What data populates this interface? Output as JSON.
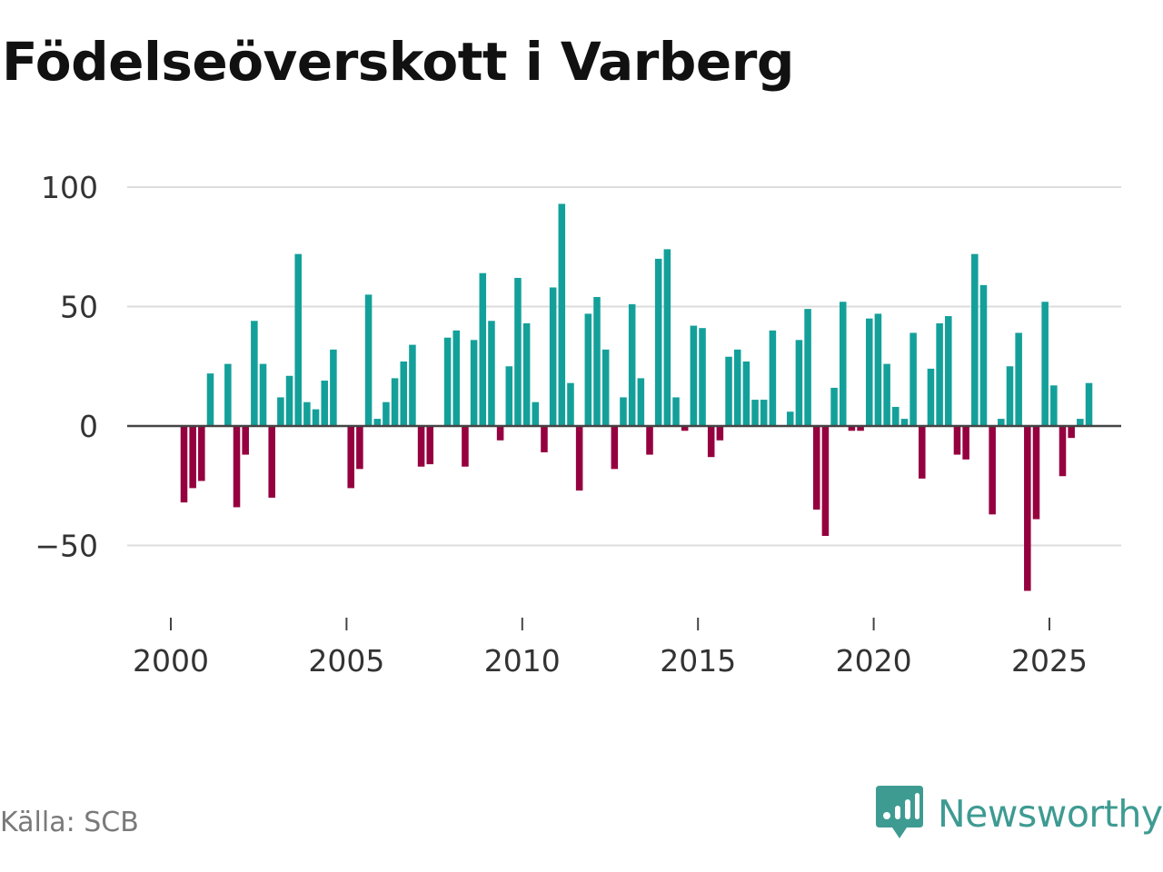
{
  "title": "Födelseöverskott i Varberg",
  "source": "Källa: SCB",
  "brand": "Newsworthy",
  "colors": {
    "positive": "#14a09a",
    "negative": "#95003f",
    "grid": "#dddddd",
    "zero": "#444444",
    "text": "#333333",
    "brand": "#3e9b92"
  },
  "chart_data": {
    "type": "bar",
    "title": "Födelseöverskott i Varberg",
    "xlabel": "",
    "ylabel": "",
    "ylim": [
      -75,
      105
    ],
    "xlim": [
      1999.2,
      2027.0
    ],
    "yticks": [
      100,
      50,
      0,
      -50
    ],
    "ytick_labels": [
      "100",
      "50",
      "0",
      "−50"
    ],
    "xticks": [
      2000,
      2005,
      2010,
      2015,
      2020,
      2025
    ],
    "xtick_labels": [
      "2000",
      "2005",
      "2010",
      "2015",
      "2020",
      "2025"
    ],
    "grid": true,
    "frequency": "quarterly",
    "start_period": "2000 Q1",
    "end_period": "2025 Q4",
    "values": [
      0,
      -32,
      -26,
      -23,
      22,
      0,
      26,
      -34,
      -12,
      44,
      26,
      -30,
      12,
      21,
      72,
      10,
      7,
      19,
      32,
      0,
      -26,
      -18,
      55,
      3,
      10,
      20,
      27,
      34,
      -17,
      -16,
      0,
      37,
      40,
      -17,
      36,
      64,
      44,
      -6,
      25,
      62,
      43,
      10,
      -11,
      58,
      93,
      18,
      -27,
      47,
      54,
      32,
      -18,
      12,
      51,
      20,
      -12,
      70,
      74,
      12,
      -2,
      42,
      41,
      -13,
      -6,
      29,
      32,
      27,
      11,
      11,
      40,
      0,
      6,
      36,
      49,
      -35,
      -46,
      16,
      52,
      -2,
      -2,
      45,
      47,
      26,
      8,
      3,
      39,
      -22,
      24,
      43,
      46,
      -12,
      -14,
      72,
      59,
      -37,
      3,
      25,
      39,
      -69,
      -39,
      52,
      17,
      -21,
      -5,
      3,
      18
    ]
  }
}
